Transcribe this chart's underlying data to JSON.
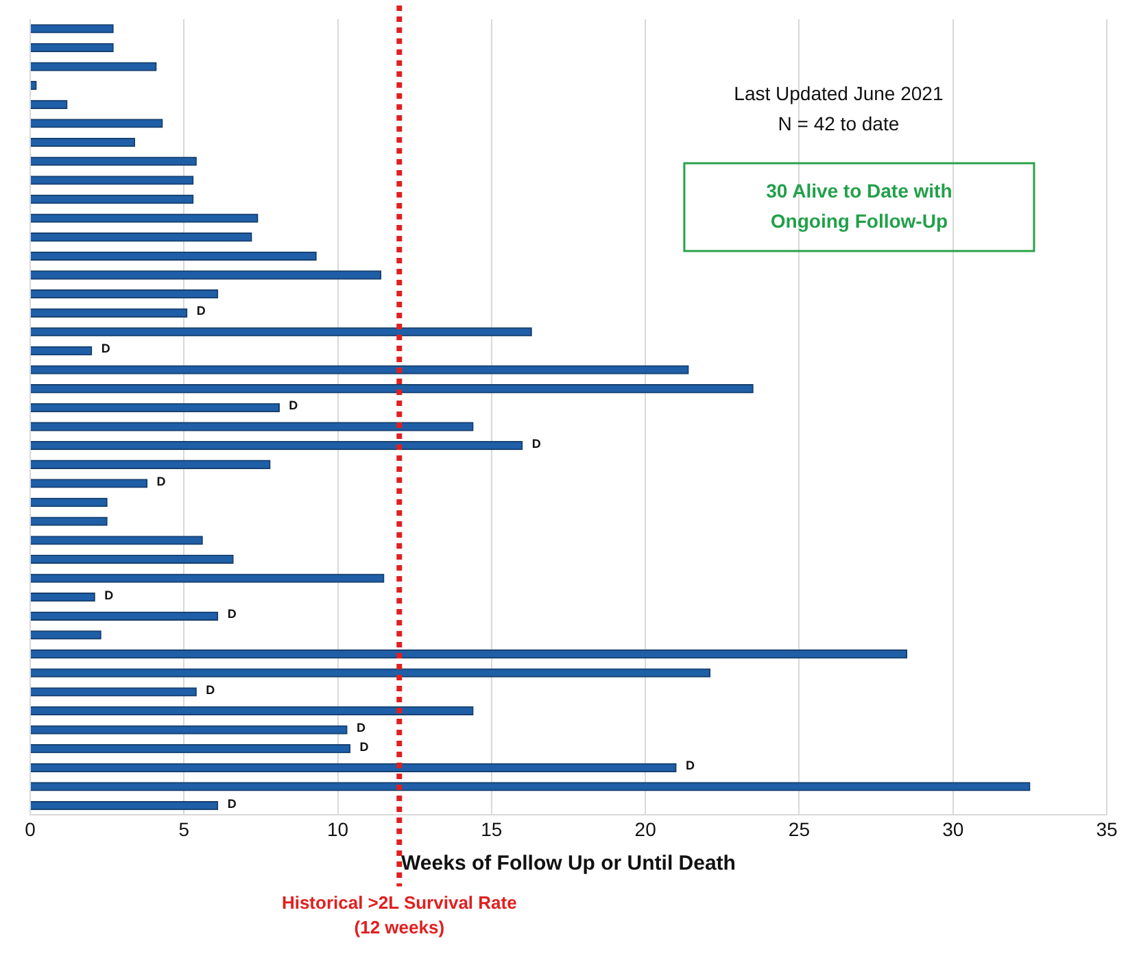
{
  "chart_data": {
    "type": "bar",
    "orientation": "horizontal",
    "categories": [
      null,
      null,
      null,
      null,
      null,
      null,
      null,
      null,
      null,
      null,
      null,
      null,
      null,
      null,
      null,
      null,
      null,
      null,
      null,
      null,
      null,
      null,
      null,
      null,
      null,
      null,
      null,
      null,
      null,
      null,
      null,
      null,
      null,
      null,
      null,
      null,
      null,
      null,
      null,
      null,
      null,
      null
    ],
    "values": [
      2.7,
      2.7,
      4.1,
      0.2,
      1.2,
      4.3,
      3.4,
      5.4,
      5.3,
      5.3,
      7.4,
      7.2,
      9.3,
      11.4,
      6.1,
      5.1,
      16.3,
      2.0,
      21.4,
      23.5,
      8.1,
      14.4,
      16.0,
      7.8,
      3.8,
      2.5,
      2.5,
      5.6,
      6.6,
      11.5,
      2.1,
      6.1,
      2.3,
      28.5,
      22.1,
      5.4,
      14.4,
      10.3,
      10.4,
      21.0,
      32.5,
      6.1
    ],
    "value_labels": [
      null,
      null,
      null,
      null,
      null,
      null,
      null,
      null,
      null,
      null,
      null,
      null,
      null,
      null,
      null,
      "D",
      null,
      "D",
      null,
      null,
      "D",
      null,
      "D",
      null,
      "D",
      null,
      null,
      null,
      null,
      null,
      "D",
      "D",
      null,
      null,
      null,
      "D",
      null,
      "D",
      "D",
      "D",
      null,
      "D"
    ],
    "color": "#1f5fa8",
    "xlabel": "Weeks of Follow Up or Until Death",
    "xlim": [
      0,
      35
    ],
    "xticks": [
      0,
      5,
      10,
      15,
      20,
      25,
      30,
      35
    ],
    "grid": "x",
    "tick_labels": "x",
    "legend": false,
    "ref_lines": [
      {
        "axis": "x",
        "value": 12,
        "label": "Historical >2L Survival Rate\n(12 weeks)",
        "color": "#e02020",
        "line_style": "dotted"
      }
    ],
    "annotations": [
      "Last Updated June 2021",
      "N = 42 to date",
      "30 Alive to Date with\nOngoing Follow-Up"
    ]
  }
}
